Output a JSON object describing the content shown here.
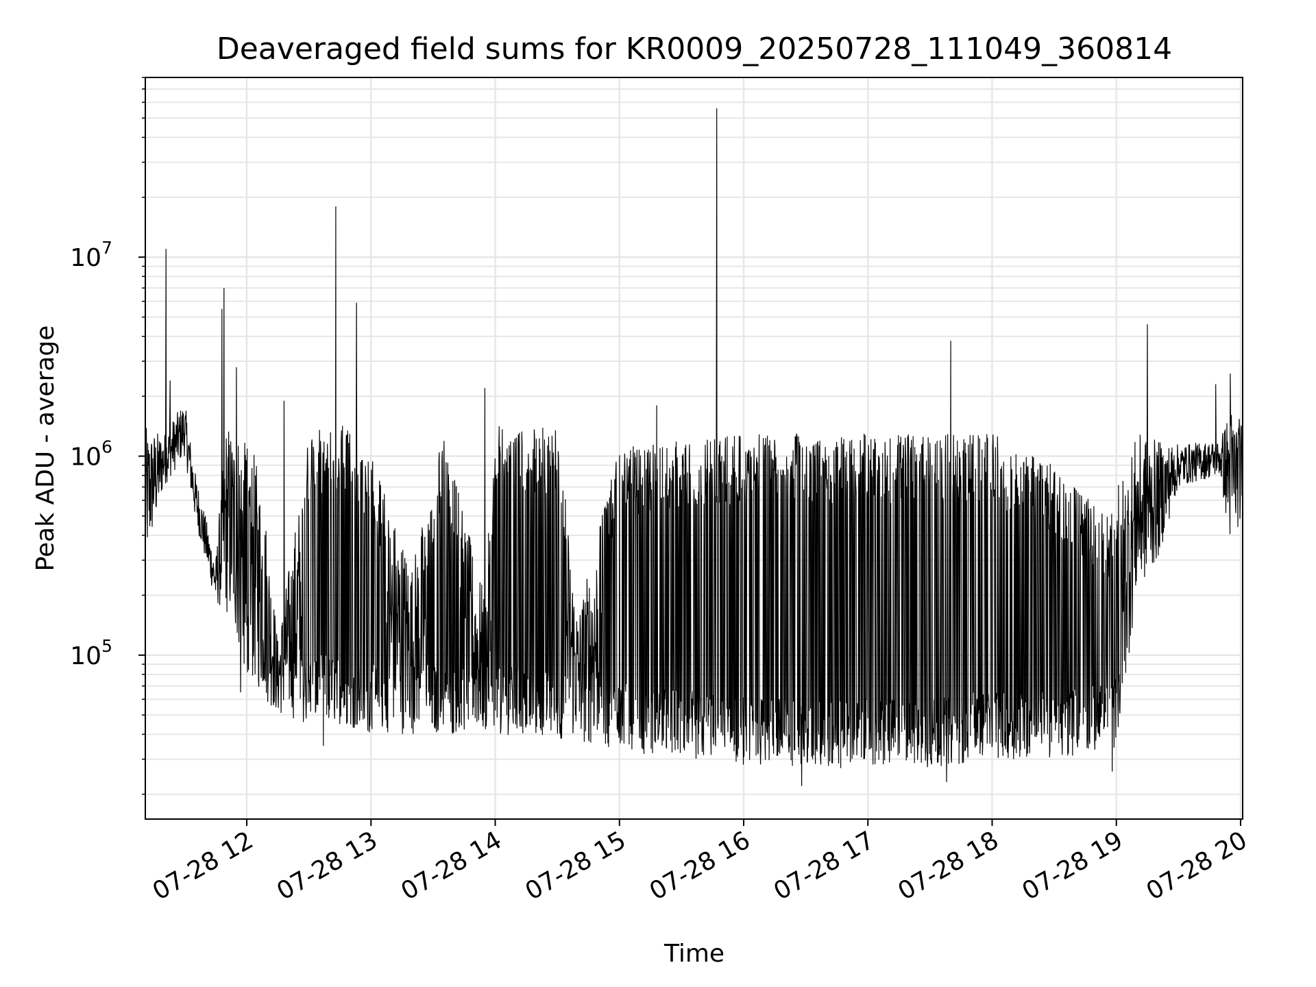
{
  "chart_data": {
    "type": "line",
    "title": "Deaveraged field sums for KR0009_20250728_111049_360814",
    "xlabel": "Time",
    "ylabel": "Peak ADU - average",
    "y_scale": "log",
    "ylim": [
      15000,
      80000000
    ],
    "xlim": [
      "2025-07-28 11:11",
      "2025-07-28 20:01"
    ],
    "x_ticks": [
      {
        "value": "2025-07-28 12:00",
        "label": "07-28 12"
      },
      {
        "value": "2025-07-28 13:00",
        "label": "07-28 13"
      },
      {
        "value": "2025-07-28 14:00",
        "label": "07-28 14"
      },
      {
        "value": "2025-07-28 15:00",
        "label": "07-28 15"
      },
      {
        "value": "2025-07-28 16:00",
        "label": "07-28 16"
      },
      {
        "value": "2025-07-28 17:00",
        "label": "07-28 17"
      },
      {
        "value": "2025-07-28 18:00",
        "label": "07-28 18"
      },
      {
        "value": "2025-07-28 19:00",
        "label": "07-28 19"
      },
      {
        "value": "2025-07-28 20:00",
        "label": "07-28 20"
      }
    ],
    "y_ticks": [
      {
        "value": 100000,
        "base": "10",
        "exp": "5"
      },
      {
        "value": 1000000,
        "base": "10",
        "exp": "6"
      },
      {
        "value": 10000000,
        "base": "10",
        "exp": "7"
      }
    ],
    "grid": true,
    "line_color": "#000000",
    "grid_color": "#e6e6e6",
    "envelope": [
      {
        "time": "2025-07-28 11:11",
        "low": 270000,
        "high": 1400000
      },
      {
        "time": "2025-07-28 11:20",
        "low": 700000,
        "high": 1300000
      },
      {
        "time": "2025-07-28 11:30",
        "low": 1000000,
        "high": 1900000
      },
      {
        "time": "2025-07-28 11:35",
        "low": 480000,
        "high": 850000
      },
      {
        "time": "2025-07-28 11:45",
        "low": 180000,
        "high": 300000
      },
      {
        "time": "2025-07-28 11:50",
        "low": 160000,
        "high": 1500000
      },
      {
        "time": "2025-07-28 12:00",
        "low": 80000,
        "high": 1400000
      },
      {
        "time": "2025-07-28 12:08",
        "low": 60000,
        "high": 700000
      },
      {
        "time": "2025-07-28 12:15",
        "low": 50000,
        "high": 120000
      },
      {
        "time": "2025-07-28 12:30",
        "low": 45000,
        "high": 1300000
      },
      {
        "time": "2025-07-28 12:45",
        "low": 45000,
        "high": 1500000
      },
      {
        "time": "2025-07-28 13:00",
        "low": 40000,
        "high": 1000000
      },
      {
        "time": "2025-07-28 13:20",
        "low": 40000,
        "high": 300000
      },
      {
        "time": "2025-07-28 13:35",
        "low": 40000,
        "high": 1300000
      },
      {
        "time": "2025-07-28 13:55",
        "low": 38000,
        "high": 200000
      },
      {
        "time": "2025-07-28 14:00",
        "low": 40000,
        "high": 1500000
      },
      {
        "time": "2025-07-28 14:30",
        "low": 38000,
        "high": 1400000
      },
      {
        "time": "2025-07-28 14:40",
        "low": 36000,
        "high": 170000
      },
      {
        "time": "2025-07-28 15:00",
        "low": 33000,
        "high": 1100000
      },
      {
        "time": "2025-07-28 15:30",
        "low": 30000,
        "high": 1200000
      },
      {
        "time": "2025-07-28 16:00",
        "low": 28000,
        "high": 1300000
      },
      {
        "time": "2025-07-28 16:30",
        "low": 27000,
        "high": 1300000
      },
      {
        "time": "2025-07-28 17:00",
        "low": 27000,
        "high": 1300000
      },
      {
        "time": "2025-07-28 17:30",
        "low": 27000,
        "high": 1300000
      },
      {
        "time": "2025-07-28 18:00",
        "low": 30000,
        "high": 1300000
      },
      {
        "time": "2025-07-28 18:30",
        "low": 30000,
        "high": 900000
      },
      {
        "time": "2025-07-28 18:55",
        "low": 32000,
        "high": 500000
      },
      {
        "time": "2025-07-28 19:00",
        "low": 34000,
        "high": 700000
      },
      {
        "time": "2025-07-28 19:10",
        "low": 200000,
        "high": 1300000
      },
      {
        "time": "2025-07-28 19:20",
        "low": 300000,
        "high": 1200000
      },
      {
        "time": "2025-07-28 19:30",
        "low": 700000,
        "high": 1150000
      },
      {
        "time": "2025-07-28 19:50",
        "low": 800000,
        "high": 1200000
      },
      {
        "time": "2025-07-28 19:55",
        "low": 350000,
        "high": 1800000
      },
      {
        "time": "2025-07-28 20:01",
        "low": 500000,
        "high": 1500000
      }
    ],
    "spikes": [
      {
        "time": "2025-07-28 11:21",
        "value": 11000000
      },
      {
        "time": "2025-07-28 11:23",
        "value": 2400000
      },
      {
        "time": "2025-07-28 11:49",
        "value": 7000000
      },
      {
        "time": "2025-07-28 11:48",
        "value": 5500000
      },
      {
        "time": "2025-07-28 11:55",
        "value": 2800000
      },
      {
        "time": "2025-07-28 12:18",
        "value": 1900000
      },
      {
        "time": "2025-07-28 12:43",
        "value": 18000000
      },
      {
        "time": "2025-07-28 12:53",
        "value": 5900000
      },
      {
        "time": "2025-07-28 13:55",
        "value": 2200000
      },
      {
        "time": "2025-07-28 15:18",
        "value": 1800000
      },
      {
        "time": "2025-07-28 15:47",
        "value": 56000000
      },
      {
        "time": "2025-07-28 17:40",
        "value": 3800000
      },
      {
        "time": "2025-07-28 19:15",
        "value": 4600000
      },
      {
        "time": "2025-07-28 19:48",
        "value": 2300000
      },
      {
        "time": "2025-07-28 19:55",
        "value": 2600000
      }
    ],
    "dips": [
      {
        "time": "2025-07-28 11:57",
        "value": 65000
      },
      {
        "time": "2025-07-28 12:37",
        "value": 35000
      },
      {
        "time": "2025-07-28 16:28",
        "value": 22000
      },
      {
        "time": "2025-07-28 17:38",
        "value": 23000
      },
      {
        "time": "2025-07-28 18:58",
        "value": 26000
      }
    ]
  }
}
